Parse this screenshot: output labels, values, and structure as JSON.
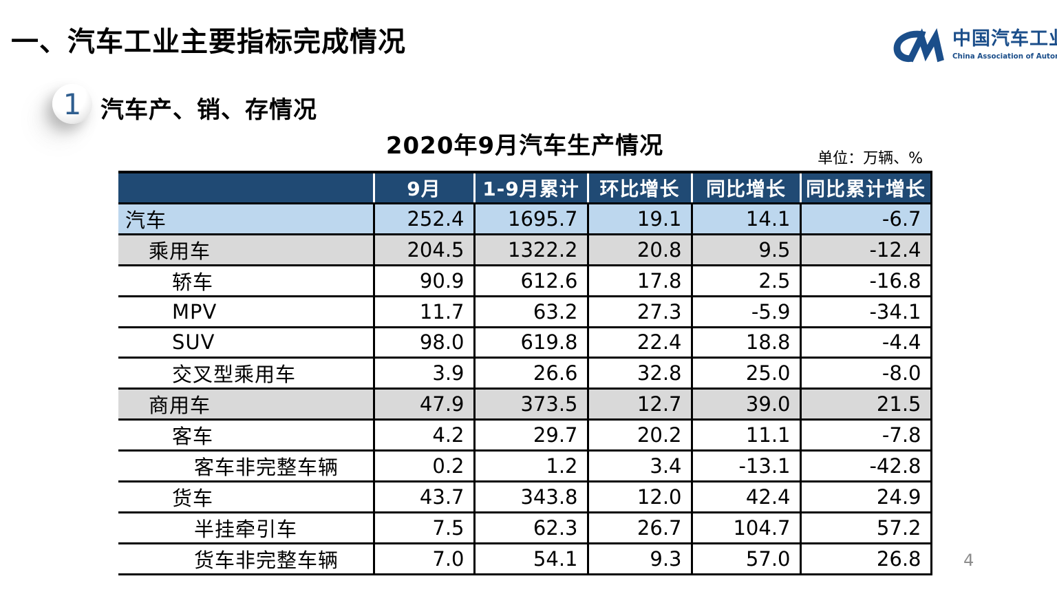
{
  "slide": {
    "title": "一、汽车工业主要指标完成情况",
    "page_number": "4"
  },
  "logo": {
    "monogram": "CM",
    "name_cn": "中国汽车工业协会",
    "name_en": "China Association of Automobile Manufacturers",
    "color": "#1B4E8A"
  },
  "section": {
    "badge": "1",
    "title": "汽车产、销、存情况"
  },
  "table": {
    "title": "2020年9月汽车生产情况",
    "unit_label": "单位：万辆、%",
    "columns": [
      "",
      "9月",
      "1-9月累计",
      "环比增长",
      "同比增长",
      "同比累计增长"
    ],
    "rows": [
      {
        "label": "汽车",
        "indent": 0,
        "highlight": "blue",
        "values": [
          "252.4",
          "1695.7",
          "19.1",
          "14.1",
          "-6.7"
        ]
      },
      {
        "label": "乘用车",
        "indent": 1,
        "highlight": "gray",
        "values": [
          "204.5",
          "1322.2",
          "20.8",
          "9.5",
          "-12.4"
        ]
      },
      {
        "label": "轿车",
        "indent": 2,
        "highlight": "none",
        "values": [
          "90.9",
          "612.6",
          "17.8",
          "2.5",
          "-16.8"
        ]
      },
      {
        "label": "MPV",
        "indent": 2,
        "highlight": "none",
        "values": [
          "11.7",
          "63.2",
          "27.3",
          "-5.9",
          "-34.1"
        ]
      },
      {
        "label": "SUV",
        "indent": 2,
        "highlight": "none",
        "values": [
          "98.0",
          "619.8",
          "22.4",
          "18.8",
          "-4.4"
        ]
      },
      {
        "label": "交叉型乘用车",
        "indent": 2,
        "highlight": "none",
        "values": [
          "3.9",
          "26.6",
          "32.8",
          "25.0",
          "-8.0"
        ]
      },
      {
        "label": "商用车",
        "indent": 1,
        "highlight": "gray",
        "values": [
          "47.9",
          "373.5",
          "12.7",
          "39.0",
          "21.5"
        ]
      },
      {
        "label": "客车",
        "indent": 2,
        "highlight": "none",
        "values": [
          "4.2",
          "29.7",
          "20.2",
          "11.1",
          "-7.8"
        ]
      },
      {
        "label": "客车非完整车辆",
        "indent": 3,
        "highlight": "none",
        "values": [
          "0.2",
          "1.2",
          "3.4",
          "-13.1",
          "-42.8"
        ]
      },
      {
        "label": "货车",
        "indent": 2,
        "highlight": "none",
        "values": [
          "43.7",
          "343.8",
          "12.0",
          "42.4",
          "24.9"
        ]
      },
      {
        "label": "半挂牵引车",
        "indent": 3,
        "highlight": "none",
        "values": [
          "7.5",
          "62.3",
          "26.7",
          "104.7",
          "57.2"
        ]
      },
      {
        "label": "货车非完整车辆",
        "indent": 3,
        "highlight": "none",
        "values": [
          "7.0",
          "54.1",
          "9.3",
          "57.0",
          "26.8"
        ]
      }
    ]
  },
  "colors": {
    "header_bg": "#204A74",
    "row_highlight_blue": "#BDD7EE",
    "row_highlight_gray": "#D9D9D9",
    "grid_line": "#000000",
    "accent_blue": "#1B4E8A",
    "badge_number_blue": "#2F5E8F",
    "page_number_gray": "#8C8C8C"
  }
}
